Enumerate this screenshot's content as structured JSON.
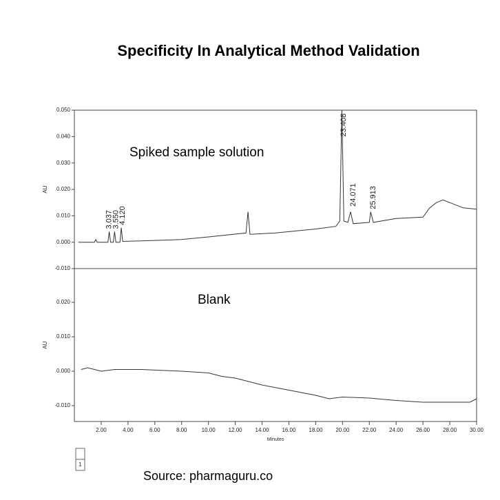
{
  "title": "Specificity In Analytical Method Validation",
  "source": "Source: pharmaguru.co",
  "page_indicator": "1",
  "chart_data": [
    {
      "type": "line",
      "annotation": "Spiked sample solution",
      "ylabel": "AU",
      "color": "#333333",
      "x": [
        0.3,
        1.5,
        1.6,
        1.7,
        2.5,
        2.6,
        2.7,
        2.9,
        3.0,
        3.1,
        3.4,
        3.5,
        3.6,
        5,
        8,
        10,
        12.8,
        12.95,
        13.1,
        15,
        18,
        19.5,
        19.8,
        19.95,
        20.1,
        20.4,
        20.6,
        20.8,
        22,
        22.1,
        22.3,
        24,
        26,
        26.5,
        27,
        27.5,
        28,
        29,
        30
      ],
      "values": [
        0,
        0,
        0.001,
        0,
        0,
        0.004,
        0,
        0,
        0.004,
        0,
        0,
        0.0055,
        0.0003,
        0.0005,
        0.001,
        0.002,
        0.0035,
        0.0115,
        0.003,
        0.0035,
        0.005,
        0.006,
        0.008,
        0.05,
        0.008,
        0.0075,
        0.0115,
        0.007,
        0.0075,
        0.0115,
        0.0075,
        0.009,
        0.0095,
        0.013,
        0.015,
        0.016,
        0.015,
        0.013,
        0.0125
      ],
      "peak_labels": [
        {
          "text": "3.037",
          "x": 2.6,
          "y": 0.005
        },
        {
          "text": "3.550",
          "x": 3.1,
          "y": 0.005
        },
        {
          "text": "4.120",
          "x": 3.6,
          "y": 0.0065
        },
        {
          "text": "23.408",
          "x": 20.1,
          "y": 0.04
        },
        {
          "text": "24.071",
          "x": 20.8,
          "y": 0.0135
        },
        {
          "text": "25.913",
          "x": 22.3,
          "y": 0.0125
        }
      ],
      "xlim": [
        0,
        30
      ],
      "ylim": [
        -0.01,
        0.05
      ],
      "yticks": [
        {
          "value": -0.01,
          "label": "-0.010"
        },
        {
          "value": 0,
          "label": "0.000"
        },
        {
          "value": 0.01,
          "label": "0.010"
        },
        {
          "value": 0.02,
          "label": "0.020"
        },
        {
          "value": 0.03,
          "label": "0.030"
        },
        {
          "value": 0.04,
          "label": "0.040"
        },
        {
          "value": 0.05,
          "label": "0.050"
        }
      ]
    },
    {
      "type": "line",
      "annotation": "Blank",
      "ylabel": "AU",
      "xlabel": "Minutes",
      "color": "#333333",
      "x": [
        0.5,
        1.0,
        1.5,
        2,
        3,
        5,
        8,
        10,
        11,
        12,
        14,
        16,
        18,
        19,
        20,
        22,
        24,
        26,
        28,
        29.5,
        30
      ],
      "values": [
        0.0005,
        0.001,
        0.0005,
        0,
        0.0005,
        0.0005,
        0,
        -0.0005,
        -0.0015,
        -0.002,
        -0.004,
        -0.0055,
        -0.007,
        -0.008,
        -0.0075,
        -0.0078,
        -0.0085,
        -0.009,
        -0.009,
        -0.009,
        -0.008
      ],
      "xlim": [
        0,
        30
      ],
      "ylim": [
        -0.0146,
        0.0298
      ],
      "xticks": [
        {
          "value": 2,
          "label": "2.00"
        },
        {
          "value": 4,
          "label": "4.00"
        },
        {
          "value": 6,
          "label": "6.00"
        },
        {
          "value": 8,
          "label": "8.00"
        },
        {
          "value": 10,
          "label": "10.00"
        },
        {
          "value": 12,
          "label": "12.00"
        },
        {
          "value": 14,
          "label": "14.00"
        },
        {
          "value": 16,
          "label": "16.00"
        },
        {
          "value": 18,
          "label": "18.00"
        },
        {
          "value": 20,
          "label": "20.00"
        },
        {
          "value": 22,
          "label": "22.00"
        },
        {
          "value": 24,
          "label": "24.00"
        },
        {
          "value": 26,
          "label": "26.00"
        },
        {
          "value": 28,
          "label": "28.00"
        },
        {
          "value": 30,
          "label": "30.00"
        }
      ],
      "yticks": [
        {
          "value": -0.01,
          "label": "-0.010"
        },
        {
          "value": 0,
          "label": "0.000"
        },
        {
          "value": 0.01,
          "label": "0.010"
        },
        {
          "value": 0.02,
          "label": "0.020"
        }
      ]
    }
  ]
}
